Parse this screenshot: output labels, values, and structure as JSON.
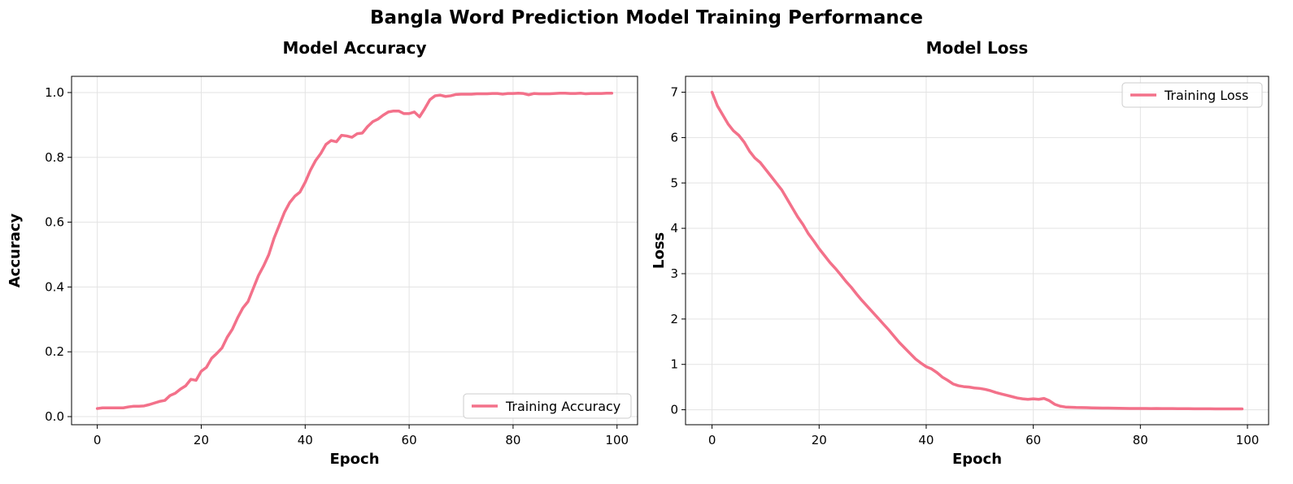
{
  "figure": {
    "suptitle": "Bangla Word Prediction Model Training Performance"
  },
  "chart_data": [
    {
      "type": "line",
      "title": "Model Accuracy",
      "xlabel": "Epoch",
      "ylabel": "Accuracy",
      "xlim": [
        -4.95,
        103.95
      ],
      "ylim": [
        -0.025,
        1.05
      ],
      "xticks": [
        0,
        20,
        40,
        60,
        80,
        100
      ],
      "xtick_labels": [
        "0",
        "20",
        "40",
        "60",
        "80",
        "100"
      ],
      "yticks": [
        0.0,
        0.2,
        0.4,
        0.6,
        0.8,
        1.0
      ],
      "ytick_labels": [
        "0.0",
        "0.2",
        "0.4",
        "0.6",
        "0.8",
        "1.0"
      ],
      "grid": true,
      "legend_position": "lower-right",
      "series": [
        {
          "name": "Training Accuracy",
          "color": "#f3718a",
          "x": [
            0,
            1,
            2,
            3,
            4,
            5,
            6,
            7,
            8,
            9,
            10,
            11,
            12,
            13,
            14,
            15,
            16,
            17,
            18,
            19,
            20,
            21,
            22,
            23,
            24,
            25,
            26,
            27,
            28,
            29,
            30,
            31,
            32,
            33,
            34,
            35,
            36,
            37,
            38,
            39,
            40,
            41,
            42,
            43,
            44,
            45,
            46,
            47,
            48,
            49,
            50,
            51,
            52,
            53,
            54,
            55,
            56,
            57,
            58,
            59,
            60,
            61,
            62,
            63,
            64,
            65,
            66,
            67,
            68,
            69,
            70,
            71,
            72,
            73,
            74,
            75,
            76,
            77,
            78,
            79,
            80,
            81,
            82,
            83,
            84,
            85,
            86,
            87,
            88,
            89,
            90,
            91,
            92,
            93,
            94,
            95,
            96,
            97,
            98,
            99
          ],
          "y": [
            0.025,
            0.027,
            0.027,
            0.027,
            0.027,
            0.027,
            0.03,
            0.032,
            0.032,
            0.033,
            0.037,
            0.042,
            0.047,
            0.05,
            0.065,
            0.072,
            0.085,
            0.095,
            0.115,
            0.112,
            0.14,
            0.152,
            0.18,
            0.195,
            0.212,
            0.245,
            0.27,
            0.305,
            0.335,
            0.355,
            0.395,
            0.435,
            0.465,
            0.5,
            0.55,
            0.59,
            0.63,
            0.66,
            0.68,
            0.693,
            0.723,
            0.76,
            0.79,
            0.812,
            0.84,
            0.852,
            0.848,
            0.868,
            0.866,
            0.862,
            0.873,
            0.875,
            0.895,
            0.91,
            0.918,
            0.93,
            0.94,
            0.943,
            0.943,
            0.935,
            0.935,
            0.94,
            0.925,
            0.95,
            0.978,
            0.99,
            0.992,
            0.988,
            0.99,
            0.994,
            0.995,
            0.995,
            0.995,
            0.996,
            0.996,
            0.996,
            0.997,
            0.997,
            0.995,
            0.997,
            0.997,
            0.998,
            0.997,
            0.993,
            0.997,
            0.996,
            0.996,
            0.996,
            0.997,
            0.998,
            0.998,
            0.997,
            0.997,
            0.998,
            0.996,
            0.997,
            0.997,
            0.997,
            0.998,
            0.998
          ]
        }
      ]
    },
    {
      "type": "line",
      "title": "Model Loss",
      "xlabel": "Epoch",
      "ylabel": "Loss",
      "xlim": [
        -4.95,
        103.95
      ],
      "ylim": [
        -0.33,
        7.35
      ],
      "xticks": [
        0,
        20,
        40,
        60,
        80,
        100
      ],
      "xtick_labels": [
        "0",
        "20",
        "40",
        "60",
        "80",
        "100"
      ],
      "yticks": [
        0,
        1,
        2,
        3,
        4,
        5,
        6,
        7
      ],
      "ytick_labels": [
        "0",
        "1",
        "2",
        "3",
        "4",
        "5",
        "6",
        "7"
      ],
      "grid": true,
      "legend_position": "upper-right",
      "series": [
        {
          "name": "Training Loss",
          "color": "#f3718a",
          "x": [
            0,
            1,
            2,
            3,
            4,
            5,
            6,
            7,
            8,
            9,
            10,
            11,
            12,
            13,
            14,
            15,
            16,
            17,
            18,
            19,
            20,
            21,
            22,
            23,
            24,
            25,
            26,
            27,
            28,
            29,
            30,
            31,
            32,
            33,
            34,
            35,
            36,
            37,
            38,
            39,
            40,
            41,
            42,
            43,
            44,
            45,
            46,
            47,
            48,
            49,
            50,
            51,
            52,
            53,
            54,
            55,
            56,
            57,
            58,
            59,
            60,
            61,
            62,
            63,
            64,
            65,
            66,
            67,
            68,
            69,
            70,
            71,
            72,
            73,
            74,
            75,
            76,
            77,
            78,
            79,
            80,
            81,
            82,
            83,
            84,
            85,
            86,
            87,
            88,
            89,
            90,
            91,
            92,
            93,
            94,
            95,
            96,
            97,
            98,
            99
          ],
          "y": [
            7.0,
            6.7,
            6.5,
            6.3,
            6.15,
            6.05,
            5.9,
            5.7,
            5.55,
            5.45,
            5.3,
            5.15,
            5.0,
            4.85,
            4.65,
            4.45,
            4.25,
            4.08,
            3.88,
            3.72,
            3.55,
            3.4,
            3.25,
            3.12,
            2.98,
            2.83,
            2.7,
            2.55,
            2.41,
            2.28,
            2.15,
            2.02,
            1.89,
            1.76,
            1.62,
            1.48,
            1.36,
            1.24,
            1.12,
            1.03,
            0.95,
            0.9,
            0.82,
            0.72,
            0.65,
            0.57,
            0.53,
            0.51,
            0.5,
            0.48,
            0.47,
            0.45,
            0.42,
            0.38,
            0.35,
            0.32,
            0.29,
            0.26,
            0.24,
            0.23,
            0.24,
            0.23,
            0.25,
            0.2,
            0.12,
            0.08,
            0.06,
            0.055,
            0.05,
            0.048,
            0.045,
            0.042,
            0.04,
            0.038,
            0.036,
            0.034,
            0.032,
            0.03,
            0.029,
            0.028,
            0.028,
            0.027,
            0.026,
            0.028,
            0.026,
            0.025,
            0.025,
            0.024,
            0.023,
            0.023,
            0.022,
            0.022,
            0.021,
            0.021,
            0.02,
            0.02,
            0.02,
            0.019,
            0.019,
            0.019
          ]
        }
      ]
    }
  ]
}
